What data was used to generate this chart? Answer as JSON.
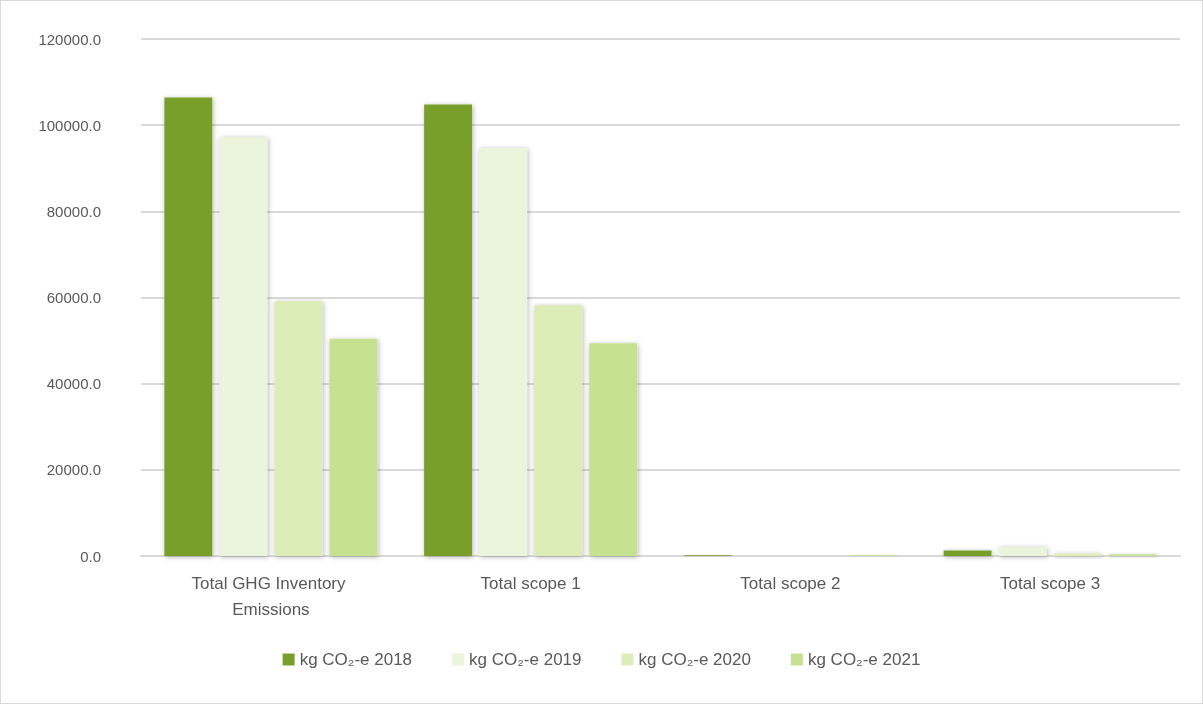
{
  "chart_data": {
    "type": "bar",
    "categories": [
      "Total GHG Inventory Emissions",
      "Total scope 1",
      "Total scope 2",
      "Total scope 3"
    ],
    "series": [
      {
        "name": "kg CO₂-e 2018",
        "color": "#789f2a",
        "values": [
          106400,
          104800,
          200,
          1300
        ]
      },
      {
        "name": "kg CO₂-e 2019",
        "color": "#ebf5dc",
        "values": [
          97200,
          94700,
          null,
          2100
        ]
      },
      {
        "name": "kg CO₂-e 2020",
        "color": "#dcedb8",
        "values": [
          59200,
          58200,
          null,
          600
        ]
      },
      {
        "name": "kg CO₂-e 2021",
        "color": "#c6e290",
        "values": [
          50400,
          49400,
          200,
          400
        ]
      }
    ],
    "ylim": [
      0,
      120000
    ],
    "yticks": [
      {
        "value": 0,
        "label": "0.0"
      },
      {
        "value": 20000,
        "label": "20000.0"
      },
      {
        "value": 40000,
        "label": "40000.0"
      },
      {
        "value": 60000,
        "label": "60000.0"
      },
      {
        "value": 80000,
        "label": "80000.0"
      },
      {
        "value": 100000,
        "label": "100000.0"
      },
      {
        "value": 120000,
        "label": "120000.0"
      }
    ],
    "grid": "y",
    "legend": "bottom"
  }
}
